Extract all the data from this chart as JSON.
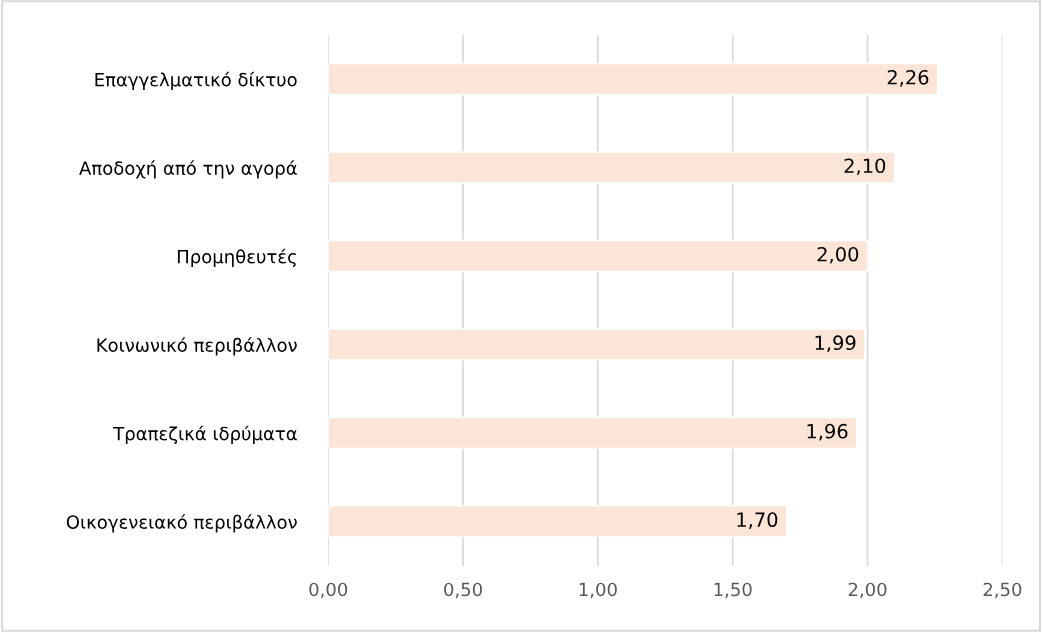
{
  "chart_data": {
    "type": "bar",
    "orientation": "horizontal",
    "categories": [
      "Επαγγελματικό δίκτυο",
      "Αποδοχή από την αγορά",
      "Προμηθευτές",
      "Κοινωνικό περιβάλλον",
      "Τραπεζικά ιδρύματα",
      "Οικογενειακό περιβάλλον"
    ],
    "values": [
      2.26,
      2.1,
      2.0,
      1.99,
      1.96,
      1.7
    ],
    "value_labels": [
      "2,26",
      "2,10",
      "2,00",
      "1,99",
      "1,96",
      "1,70"
    ],
    "color": "#fbe5d6",
    "xlim": [
      0,
      2.5
    ],
    "xticks": [
      {
        "value": 0,
        "label": "0,00"
      },
      {
        "value": 0.5,
        "label": "0,50"
      },
      {
        "value": 1.0,
        "label": "1,00"
      },
      {
        "value": 1.5,
        "label": "1,50"
      },
      {
        "value": 2.0,
        "label": "2,00"
      },
      {
        "value": 2.5,
        "label": "2,50"
      }
    ],
    "grid": "x",
    "legend": false
  }
}
